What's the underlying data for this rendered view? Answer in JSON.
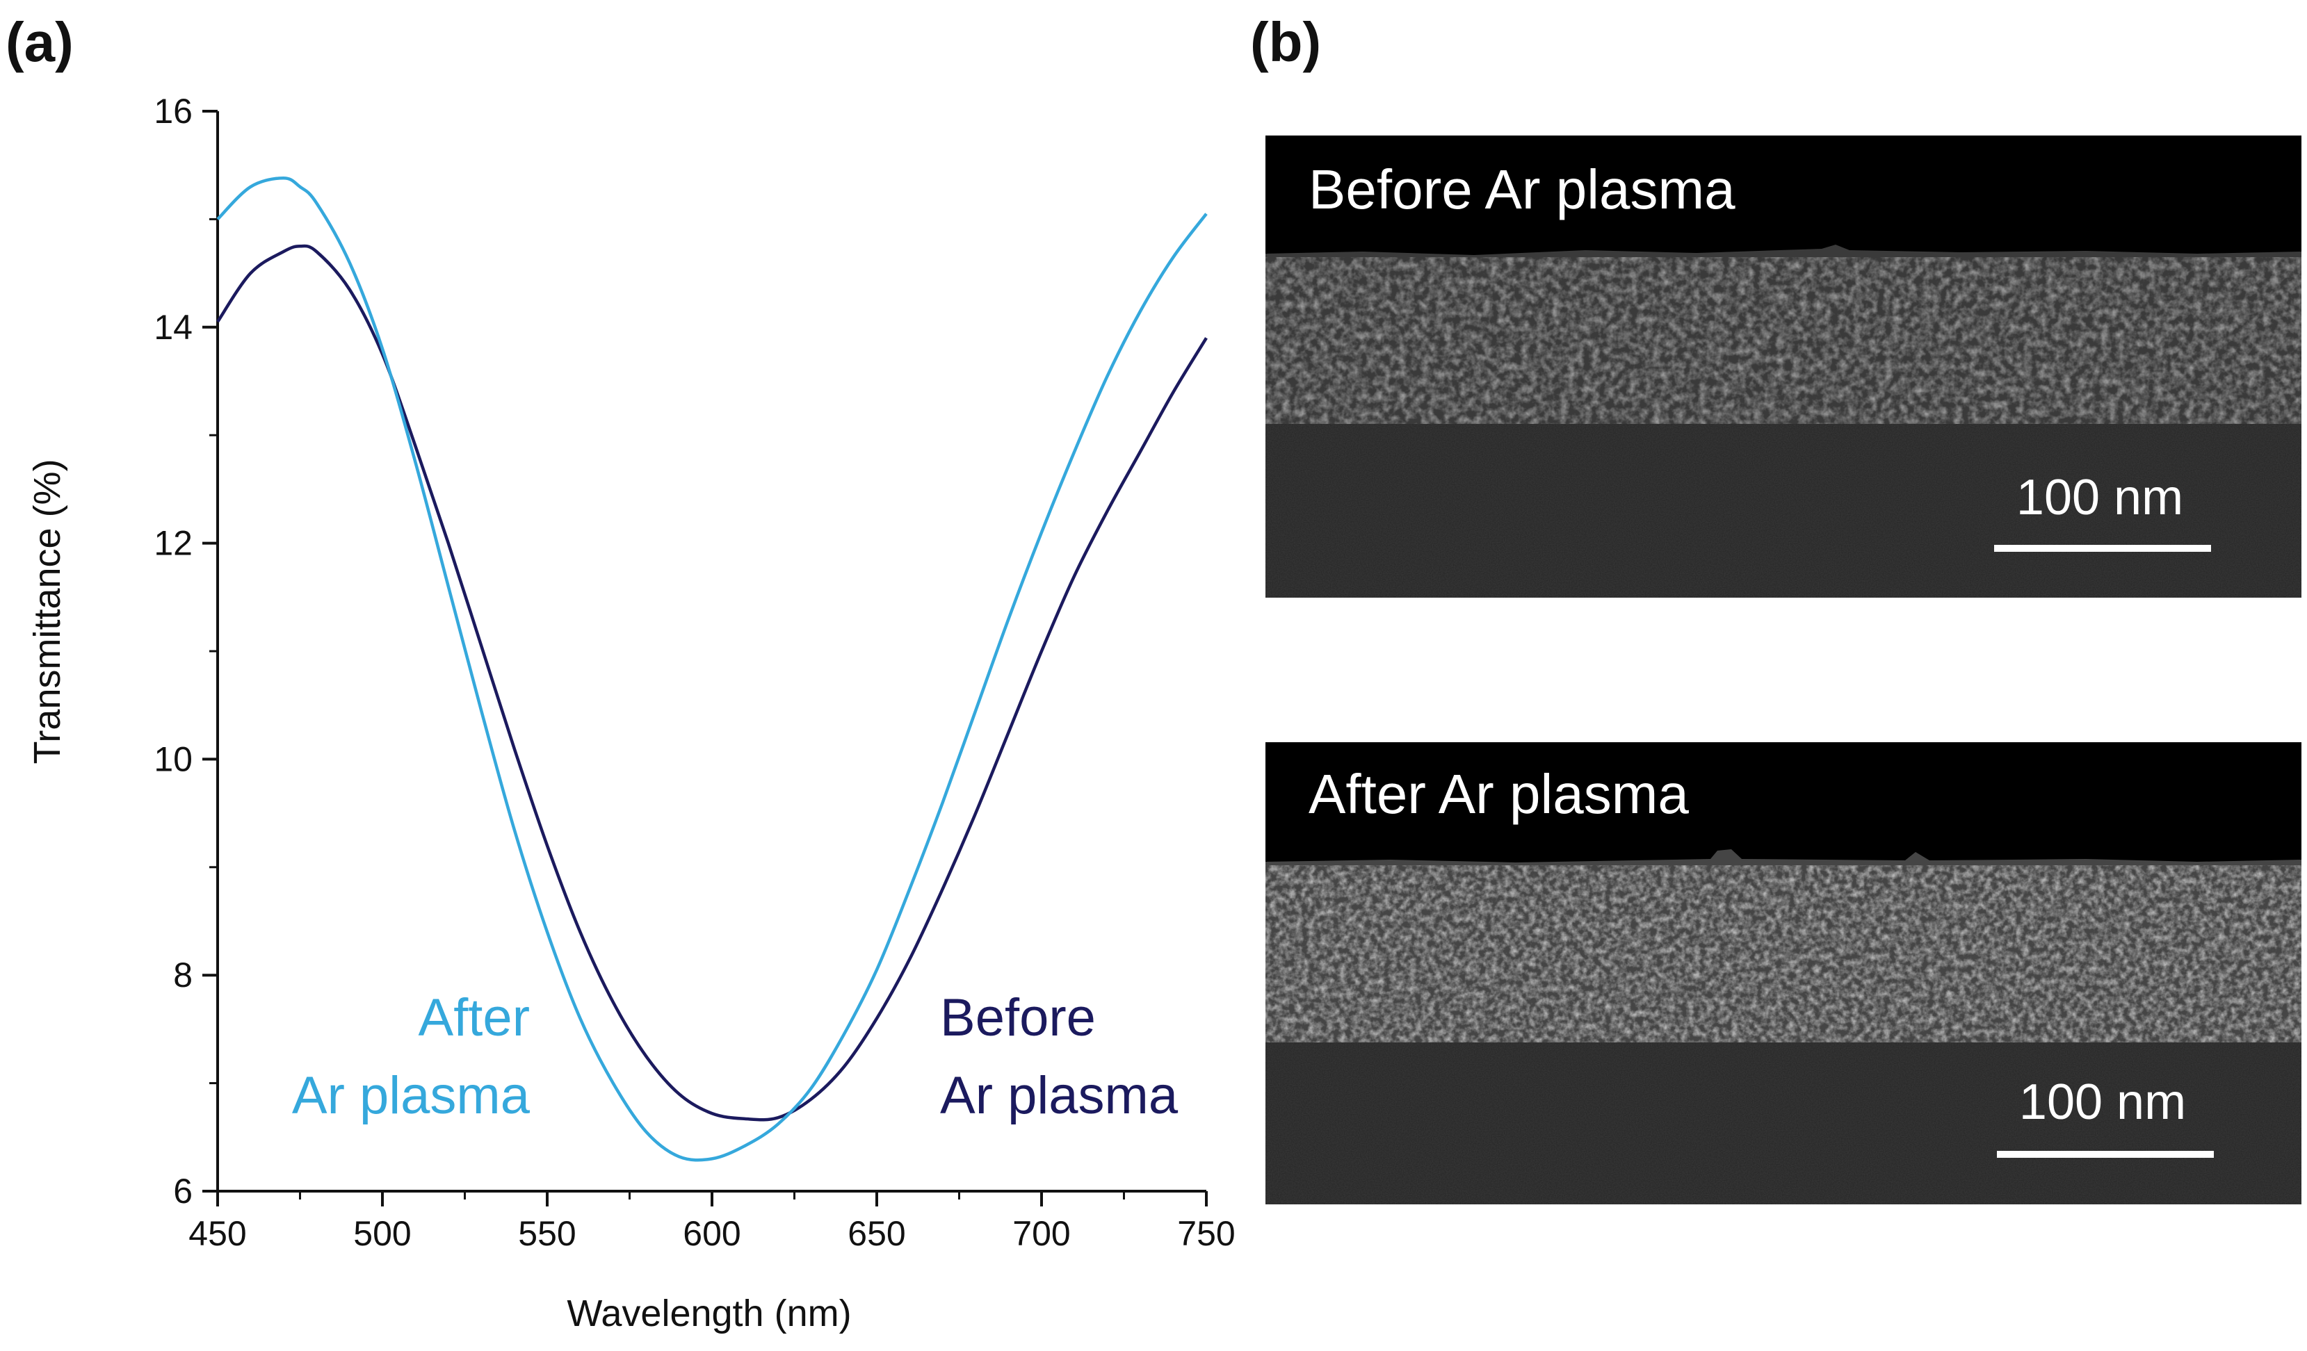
{
  "panel_a": {
    "label": "(a)"
  },
  "panel_b": {
    "label": "(b)",
    "images": [
      {
        "caption": "Before Ar plasma",
        "scale_bar_label": "100 nm"
      },
      {
        "caption": "After Ar plasma",
        "scale_bar_label": "100 nm"
      }
    ]
  },
  "chart_data": {
    "type": "line",
    "title": "",
    "xlabel": "Wavelength (nm)",
    "ylabel": "Transmittance (%)",
    "xlim": [
      450,
      750
    ],
    "ylim": [
      6,
      16
    ],
    "x_ticks": [
      450,
      500,
      550,
      600,
      650,
      700,
      750
    ],
    "y_ticks": [
      6,
      8,
      10,
      12,
      14,
      16
    ],
    "grid": false,
    "series": [
      {
        "name": "Before Ar plasma",
        "label_lines": [
          "Before",
          "Ar plasma"
        ],
        "color": "#1b1a5e",
        "x": [
          450,
          460,
          470,
          475,
          480,
          490,
          500,
          510,
          520,
          530,
          540,
          550,
          560,
          570,
          580,
          590,
          600,
          610,
          620,
          630,
          640,
          650,
          660,
          670,
          680,
          690,
          700,
          710,
          720,
          730,
          740,
          750
        ],
        "y": [
          14.05,
          14.5,
          14.7,
          14.75,
          14.7,
          14.35,
          13.75,
          12.9,
          12.0,
          11.05,
          10.1,
          9.2,
          8.4,
          7.75,
          7.25,
          6.9,
          6.72,
          6.67,
          6.68,
          6.85,
          7.15,
          7.6,
          8.15,
          8.8,
          9.5,
          10.25,
          11.0,
          11.7,
          12.3,
          12.85,
          13.4,
          13.9
        ]
      },
      {
        "name": "After Ar plasma",
        "label_lines": [
          "After",
          "Ar plasma"
        ],
        "color": "#35a8dc",
        "x": [
          450,
          460,
          470,
          475,
          480,
          490,
          500,
          510,
          520,
          530,
          540,
          550,
          560,
          570,
          580,
          590,
          600,
          610,
          620,
          630,
          640,
          650,
          660,
          670,
          680,
          690,
          700,
          710,
          720,
          730,
          740,
          750
        ],
        "y": [
          15.0,
          15.3,
          15.38,
          15.3,
          15.15,
          14.6,
          13.8,
          12.75,
          11.6,
          10.45,
          9.35,
          8.4,
          7.6,
          7.0,
          6.55,
          6.32,
          6.3,
          6.42,
          6.62,
          6.95,
          7.45,
          8.05,
          8.8,
          9.6,
          10.45,
          11.3,
          12.1,
          12.85,
          13.55,
          14.15,
          14.65,
          15.05
        ]
      }
    ]
  },
  "colors": {
    "before": "#1b1a5e",
    "after": "#35a8dc",
    "axis": "#111111",
    "sem_background": "#000000"
  }
}
